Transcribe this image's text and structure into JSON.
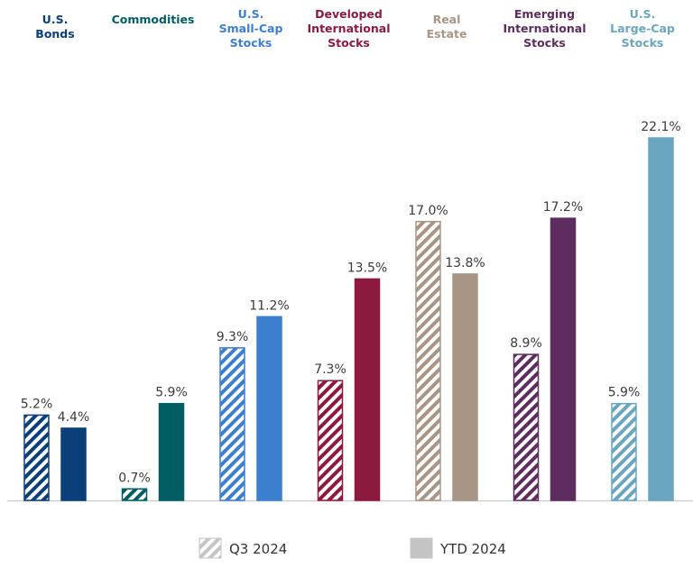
{
  "chart_data": {
    "type": "bar",
    "categories": [
      [
        "U.S.",
        "Bonds"
      ],
      [
        "Commodities"
      ],
      [
        "U.S.",
        "Small-Cap",
        "Stocks"
      ],
      [
        "Developed",
        "International",
        "Stocks"
      ],
      [
        "Real",
        "Estate"
      ],
      [
        "Emerging",
        "International",
        "Stocks"
      ],
      [
        "U.S.",
        "Large-Cap",
        "Stocks"
      ]
    ],
    "colors": [
      "#0b3f7a",
      "#005e63",
      "#3d7fcf",
      "#8c1a3f",
      "#a89585",
      "#5c2d5e",
      "#6aa6bf"
    ],
    "series": [
      {
        "name": "Q3 2024",
        "pattern": "hatched",
        "values": [
          5.2,
          0.7,
          9.3,
          7.3,
          17.0,
          8.9,
          5.9
        ]
      },
      {
        "name": "YTD 2024",
        "pattern": "solid",
        "values": [
          4.4,
          5.9,
          11.2,
          13.5,
          13.8,
          17.2,
          22.1
        ]
      }
    ],
    "value_format": "%",
    "ylim": [
      0,
      22.1
    ],
    "grid": false,
    "legend_position": "bottom"
  }
}
